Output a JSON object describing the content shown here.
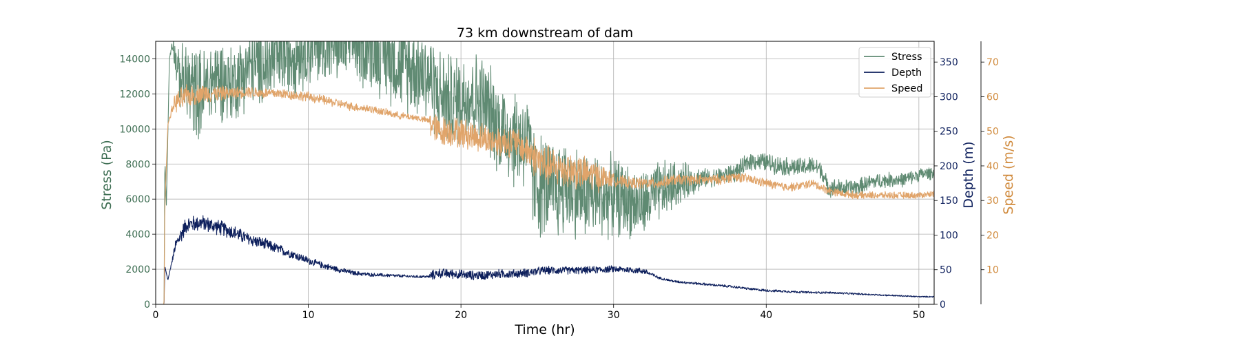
{
  "chart_data": {
    "type": "line",
    "title": "73 km downstream of dam",
    "xlabel": "Time (hr)",
    "xlim": [
      0,
      51
    ],
    "xticks": [
      0,
      10,
      20,
      30,
      40,
      50
    ],
    "grid": true,
    "legend_position": "top-right",
    "axes": {
      "stress": {
        "label": "Stress (Pa)",
        "ylim": [
          0,
          15000
        ],
        "ticks": [
          0,
          2000,
          4000,
          6000,
          8000,
          10000,
          12000,
          14000
        ],
        "color": "#3e6e53",
        "side": "left"
      },
      "depth": {
        "label": "Depth (m)",
        "ylim": [
          0,
          380
        ],
        "ticks": [
          0,
          50,
          100,
          150,
          200,
          250,
          300,
          350
        ],
        "color": "#0d1f5c",
        "side": "right"
      },
      "speed": {
        "label": "Speed (m/s)",
        "ylim": [
          0,
          76
        ],
        "ticks": [
          10,
          20,
          30,
          40,
          50,
          60,
          70
        ],
        "color": "#d08a3c",
        "side": "right-offset"
      }
    },
    "series": [
      {
        "name": "Stress",
        "axis": "stress",
        "color": "#5f8a72",
        "line_color": "#5f8a72",
        "points": [
          [
            0,
            0
          ],
          [
            0.55,
            0
          ],
          [
            0.6,
            8300
          ],
          [
            0.7,
            5600
          ],
          [
            0.9,
            14000
          ],
          [
            1.1,
            15000
          ],
          [
            1.5,
            13000
          ],
          [
            2,
            12500
          ],
          [
            3,
            12000
          ],
          [
            4,
            13000
          ],
          [
            5,
            12500
          ],
          [
            6,
            13500
          ],
          [
            7,
            13600
          ],
          [
            8,
            14000
          ],
          [
            9,
            14400
          ],
          [
            10,
            14800
          ],
          [
            11,
            15000
          ],
          [
            12,
            15000
          ],
          [
            13,
            15000
          ],
          [
            14,
            14800
          ],
          [
            15,
            14300
          ],
          [
            16,
            13700
          ],
          [
            17,
            13500
          ],
          [
            17.9,
            13000
          ],
          [
            18.5,
            12000
          ],
          [
            19.5,
            11500
          ],
          [
            20.5,
            12000
          ],
          [
            21.5,
            11500
          ],
          [
            22.5,
            10200
          ],
          [
            23.5,
            9500
          ],
          [
            24.3,
            9300
          ],
          [
            24.8,
            7000
          ],
          [
            26,
            6500
          ],
          [
            27,
            6700
          ],
          [
            28,
            6300
          ],
          [
            29,
            6100
          ],
          [
            30,
            6200
          ],
          [
            31,
            5900
          ],
          [
            32,
            5700
          ],
          [
            33,
            6400
          ],
          [
            34,
            6800
          ],
          [
            35,
            7100
          ],
          [
            36,
            7200
          ],
          [
            37,
            7300
          ],
          [
            38,
            7500
          ],
          [
            39,
            8200
          ],
          [
            40,
            8100
          ],
          [
            41,
            7900
          ],
          [
            42,
            7800
          ],
          [
            43,
            7900
          ],
          [
            43.6,
            7700
          ],
          [
            44,
            6700
          ],
          [
            45,
            6600
          ],
          [
            46,
            6700
          ],
          [
            47,
            7000
          ],
          [
            48,
            7100
          ],
          [
            49,
            7100
          ],
          [
            50,
            7400
          ],
          [
            51,
            7500
          ]
        ],
        "band": [
          [
            0.9,
            0
          ],
          [
            2,
            3000
          ],
          [
            5,
            2500
          ],
          [
            18,
            3000
          ],
          [
            22,
            3000
          ],
          [
            24.8,
            3500
          ],
          [
            33,
            2000
          ],
          [
            36,
            600
          ],
          [
            44,
            600
          ],
          [
            51,
            400
          ]
        ]
      },
      {
        "name": "Depth",
        "axis": "depth",
        "color": "#0d1f5c",
        "line_color": "#0d1f5c",
        "points": [
          [
            0,
            0
          ],
          [
            0.55,
            0
          ],
          [
            0.6,
            55
          ],
          [
            0.8,
            35
          ],
          [
            1,
            55
          ],
          [
            1.3,
            85
          ],
          [
            2,
            115
          ],
          [
            3,
            118
          ],
          [
            4,
            112
          ],
          [
            5,
            105
          ],
          [
            6,
            95
          ],
          [
            7,
            88
          ],
          [
            8,
            80
          ],
          [
            9,
            72
          ],
          [
            10,
            63
          ],
          [
            11,
            56
          ],
          [
            12,
            50
          ],
          [
            13,
            45
          ],
          [
            14,
            43
          ],
          [
            15,
            42
          ],
          [
            16,
            41
          ],
          [
            17,
            40
          ],
          [
            17.9,
            40
          ],
          [
            18.5,
            45
          ],
          [
            19.5,
            44
          ],
          [
            20.5,
            42
          ],
          [
            21.5,
            42
          ],
          [
            22.5,
            44
          ],
          [
            23.5,
            44
          ],
          [
            24.5,
            46
          ],
          [
            25.5,
            49
          ],
          [
            27,
            49
          ],
          [
            28,
            49
          ],
          [
            29,
            50
          ],
          [
            30,
            51
          ],
          [
            31,
            50
          ],
          [
            32,
            48
          ],
          [
            33,
            38
          ],
          [
            34,
            33
          ],
          [
            35,
            31
          ],
          [
            36,
            29
          ],
          [
            37,
            27
          ],
          [
            38,
            25
          ],
          [
            39,
            22
          ],
          [
            40,
            20
          ],
          [
            41,
            19
          ],
          [
            42,
            18
          ],
          [
            43,
            17
          ],
          [
            44,
            17
          ],
          [
            45,
            16
          ],
          [
            46,
            15
          ],
          [
            47,
            14
          ],
          [
            48,
            13
          ],
          [
            49,
            12
          ],
          [
            50,
            11
          ],
          [
            51,
            11
          ]
        ],
        "band": [
          [
            0.9,
            0
          ],
          [
            1.5,
            14
          ],
          [
            5,
            12
          ],
          [
            10,
            6
          ],
          [
            14,
            3
          ],
          [
            17.9,
            2
          ],
          [
            18,
            8
          ],
          [
            24.5,
            7
          ],
          [
            32,
            5
          ],
          [
            33,
            2
          ],
          [
            40,
            2
          ],
          [
            51,
            1
          ]
        ]
      },
      {
        "name": "Speed",
        "axis": "speed",
        "color": "#e0a46a",
        "line_color": "#e0a46a",
        "points": [
          [
            0,
            0
          ],
          [
            0.55,
            0
          ],
          [
            0.6,
            28
          ],
          [
            0.8,
            52
          ],
          [
            1.2,
            58
          ],
          [
            2,
            60
          ],
          [
            3,
            61
          ],
          [
            4,
            61
          ],
          [
            5,
            61
          ],
          [
            6,
            61.5
          ],
          [
            7,
            61
          ],
          [
            8,
            61
          ],
          [
            9,
            60.5
          ],
          [
            10,
            60
          ],
          [
            11,
            59
          ],
          [
            12,
            58
          ],
          [
            13,
            57
          ],
          [
            14,
            56.5
          ],
          [
            15,
            55.5
          ],
          [
            16,
            54.5
          ],
          [
            17,
            54
          ],
          [
            17.9,
            53
          ],
          [
            18.5,
            50
          ],
          [
            19.5,
            50
          ],
          [
            20.5,
            49
          ],
          [
            21.5,
            48
          ],
          [
            22.5,
            47
          ],
          [
            23.5,
            47
          ],
          [
            24.5,
            44
          ],
          [
            25.5,
            40
          ],
          [
            27,
            39
          ],
          [
            28,
            38
          ],
          [
            29,
            37
          ],
          [
            30,
            36
          ],
          [
            31,
            35
          ],
          [
            32,
            35
          ],
          [
            33,
            35
          ],
          [
            34,
            36
          ],
          [
            35,
            36
          ],
          [
            36,
            36
          ],
          [
            37,
            36
          ],
          [
            38,
            37
          ],
          [
            39,
            36
          ],
          [
            40,
            35
          ],
          [
            41,
            34
          ],
          [
            42,
            34
          ],
          [
            43,
            35
          ],
          [
            44,
            33
          ],
          [
            45,
            32
          ],
          [
            46,
            31.5
          ],
          [
            47,
            31.5
          ],
          [
            48,
            31.5
          ],
          [
            49,
            31.5
          ],
          [
            50,
            31.5
          ],
          [
            51,
            32
          ]
        ],
        "band": [
          [
            0.8,
            0
          ],
          [
            1.5,
            4
          ],
          [
            5,
            2
          ],
          [
            17.9,
            1
          ],
          [
            18,
            5
          ],
          [
            24,
            5
          ],
          [
            25,
            7
          ],
          [
            29,
            5
          ],
          [
            30,
            2
          ],
          [
            51,
            1
          ]
        ]
      }
    ]
  }
}
